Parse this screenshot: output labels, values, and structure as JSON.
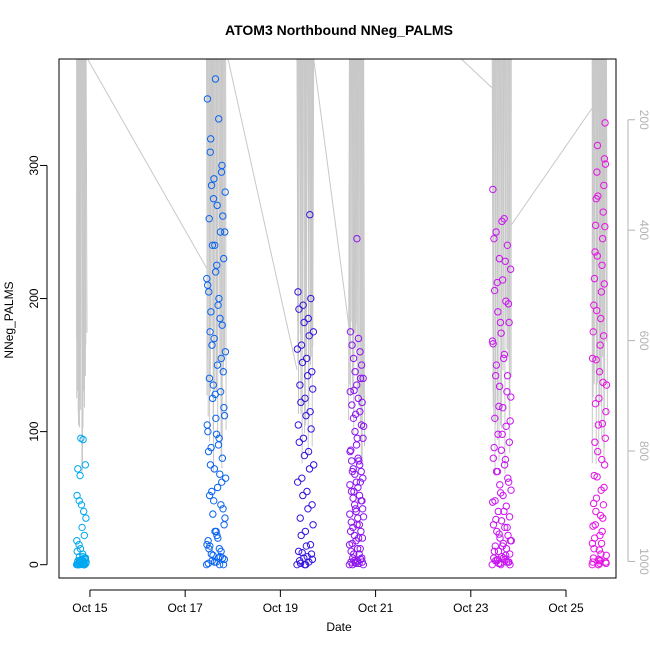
{
  "chart_data": {
    "type": "scatter",
    "title": "ATOM3 Northbound NNeg_PALMS",
    "xlabel": "Date",
    "ylabel": "NNeg_PALMS",
    "x_ticks": [
      {
        "day": 15,
        "label": "Oct 15"
      },
      {
        "day": 17,
        "label": "Oct 17"
      },
      {
        "day": 19,
        "label": "Oct 19"
      },
      {
        "day": 21,
        "label": "Oct 21"
      },
      {
        "day": 23,
        "label": "Oct 23"
      },
      {
        "day": 25,
        "label": "Oct 25"
      }
    ],
    "xlim": [
      14.35,
      26.05
    ],
    "ylim": [
      -10,
      380
    ],
    "y_ticks": [
      0,
      100,
      200,
      300
    ],
    "y2_ticks": [
      200,
      400,
      600,
      800,
      1000
    ],
    "y2lim": [
      1030,
      90
    ],
    "grid": false,
    "marker_colors": [
      "#00b4ff",
      "#0060ff",
      "#2a00e0",
      "#8a00f0",
      "#d400f0",
      "#ff00e0"
    ],
    "line_color": "#c8c8c8",
    "series": [
      {
        "day_start": 14.72,
        "day_end": 14.92,
        "color": "#00a8f0",
        "values": [
          0,
          1,
          2,
          3,
          0,
          5,
          8,
          12,
          0,
          1,
          2,
          3,
          15,
          18,
          22,
          28,
          0,
          2,
          4,
          6,
          1,
          0,
          35,
          40,
          45,
          48,
          52,
          0,
          3,
          67,
          72,
          75,
          94,
          95,
          1,
          2,
          0,
          4,
          6,
          10,
          0,
          1,
          2,
          3,
          5,
          0,
          2,
          1
        ]
      },
      {
        "day_start": 17.45,
        "day_end": 17.85,
        "color": "#0a64f0",
        "values": [
          0,
          2,
          5,
          8,
          12,
          18,
          25,
          30,
          38,
          45,
          52,
          58,
          65,
          72,
          80,
          88,
          95,
          100,
          110,
          118,
          125,
          130,
          140,
          150,
          160,
          170,
          180,
          190,
          200,
          210,
          220,
          230,
          240,
          250,
          260,
          270,
          280,
          290,
          300,
          320,
          335,
          350,
          365,
          0,
          3,
          6,
          12,
          22,
          35,
          48,
          62,
          75,
          90,
          105,
          128,
          145,
          165,
          185,
          205,
          225,
          250,
          275,
          295,
          310,
          5,
          15,
          25,
          42,
          55,
          68,
          85,
          98,
          112,
          135,
          155,
          175,
          195,
          215,
          240,
          262,
          285,
          0,
          1,
          2,
          4,
          7,
          10,
          14,
          20
        ]
      },
      {
        "day_start": 19.35,
        "day_end": 19.7,
        "color": "#3214e0",
        "values": [
          0,
          2,
          5,
          10,
          15,
          25,
          35,
          45,
          55,
          65,
          75,
          85,
          95,
          105,
          115,
          125,
          135,
          145,
          155,
          165,
          175,
          185,
          195,
          205,
          263,
          0,
          3,
          8,
          14,
          22,
          30,
          42,
          52,
          62,
          72,
          82,
          92,
          102,
          112,
          122,
          132,
          142,
          152,
          162,
          172,
          182,
          192,
          200,
          0,
          1,
          4,
          6,
          9
        ]
      },
      {
        "day_start": 20.45,
        "day_end": 20.75,
        "color": "#8c14f0",
        "values": [
          0,
          1,
          2,
          3,
          4,
          5,
          8,
          10,
          12,
          15,
          18,
          20,
          22,
          25,
          28,
          30,
          32,
          35,
          38,
          40,
          42,
          45,
          48,
          50,
          52,
          55,
          58,
          60,
          62,
          65,
          68,
          70,
          72,
          75,
          78,
          80,
          85,
          90,
          95,
          100,
          105,
          110,
          115,
          120,
          125,
          130,
          135,
          140,
          145,
          150,
          155,
          160,
          165,
          170,
          175,
          245,
          0,
          2,
          5,
          8,
          12,
          16,
          20,
          25,
          30,
          36,
          42,
          48,
          55,
          62,
          70,
          78,
          86,
          95,
          104,
          113,
          122,
          131,
          140,
          0,
          1,
          2,
          3
        ]
      },
      {
        "day_start": 23.45,
        "day_end": 23.85,
        "color": "#c814f0",
        "values": [
          0,
          1,
          2,
          3,
          4,
          5,
          6,
          8,
          10,
          12,
          14,
          16,
          18,
          20,
          22,
          25,
          28,
          30,
          33,
          36,
          40,
          44,
          48,
          52,
          56,
          60,
          65,
          70,
          75,
          80,
          86,
          92,
          98,
          104,
          110,
          118,
          126,
          134,
          142,
          150,
          158,
          166,
          174,
          182,
          190,
          198,
          206,
          214,
          222,
          230,
          240,
          250,
          260,
          282,
          0,
          2,
          4,
          7,
          10,
          14,
          18,
          23,
          28,
          34,
          40,
          47,
          54,
          62,
          70,
          79,
          88,
          98,
          108,
          119,
          130,
          142,
          155,
          168,
          182,
          196,
          212,
          228,
          245,
          258,
          0,
          1,
          2,
          3,
          5
        ]
      },
      {
        "day_start": 25.55,
        "day_end": 25.85,
        "color": "#e414e4",
        "values": [
          0,
          1,
          2,
          3,
          5,
          8,
          12,
          16,
          20,
          25,
          30,
          35,
          40,
          45,
          50,
          58,
          66,
          75,
          85,
          95,
          105,
          115,
          125,
          135,
          145,
          155,
          165,
          175,
          185,
          195,
          205,
          215,
          225,
          235,
          245,
          255,
          265,
          275,
          285,
          295,
          305,
          315,
          332,
          0,
          2,
          4,
          7,
          11,
          16,
          22,
          29,
          37,
          46,
          56,
          67,
          79,
          92,
          106,
          121,
          137,
          154,
          172,
          191,
          211,
          232,
          254,
          277,
          301,
          0,
          1,
          3
        ]
      }
    ]
  }
}
